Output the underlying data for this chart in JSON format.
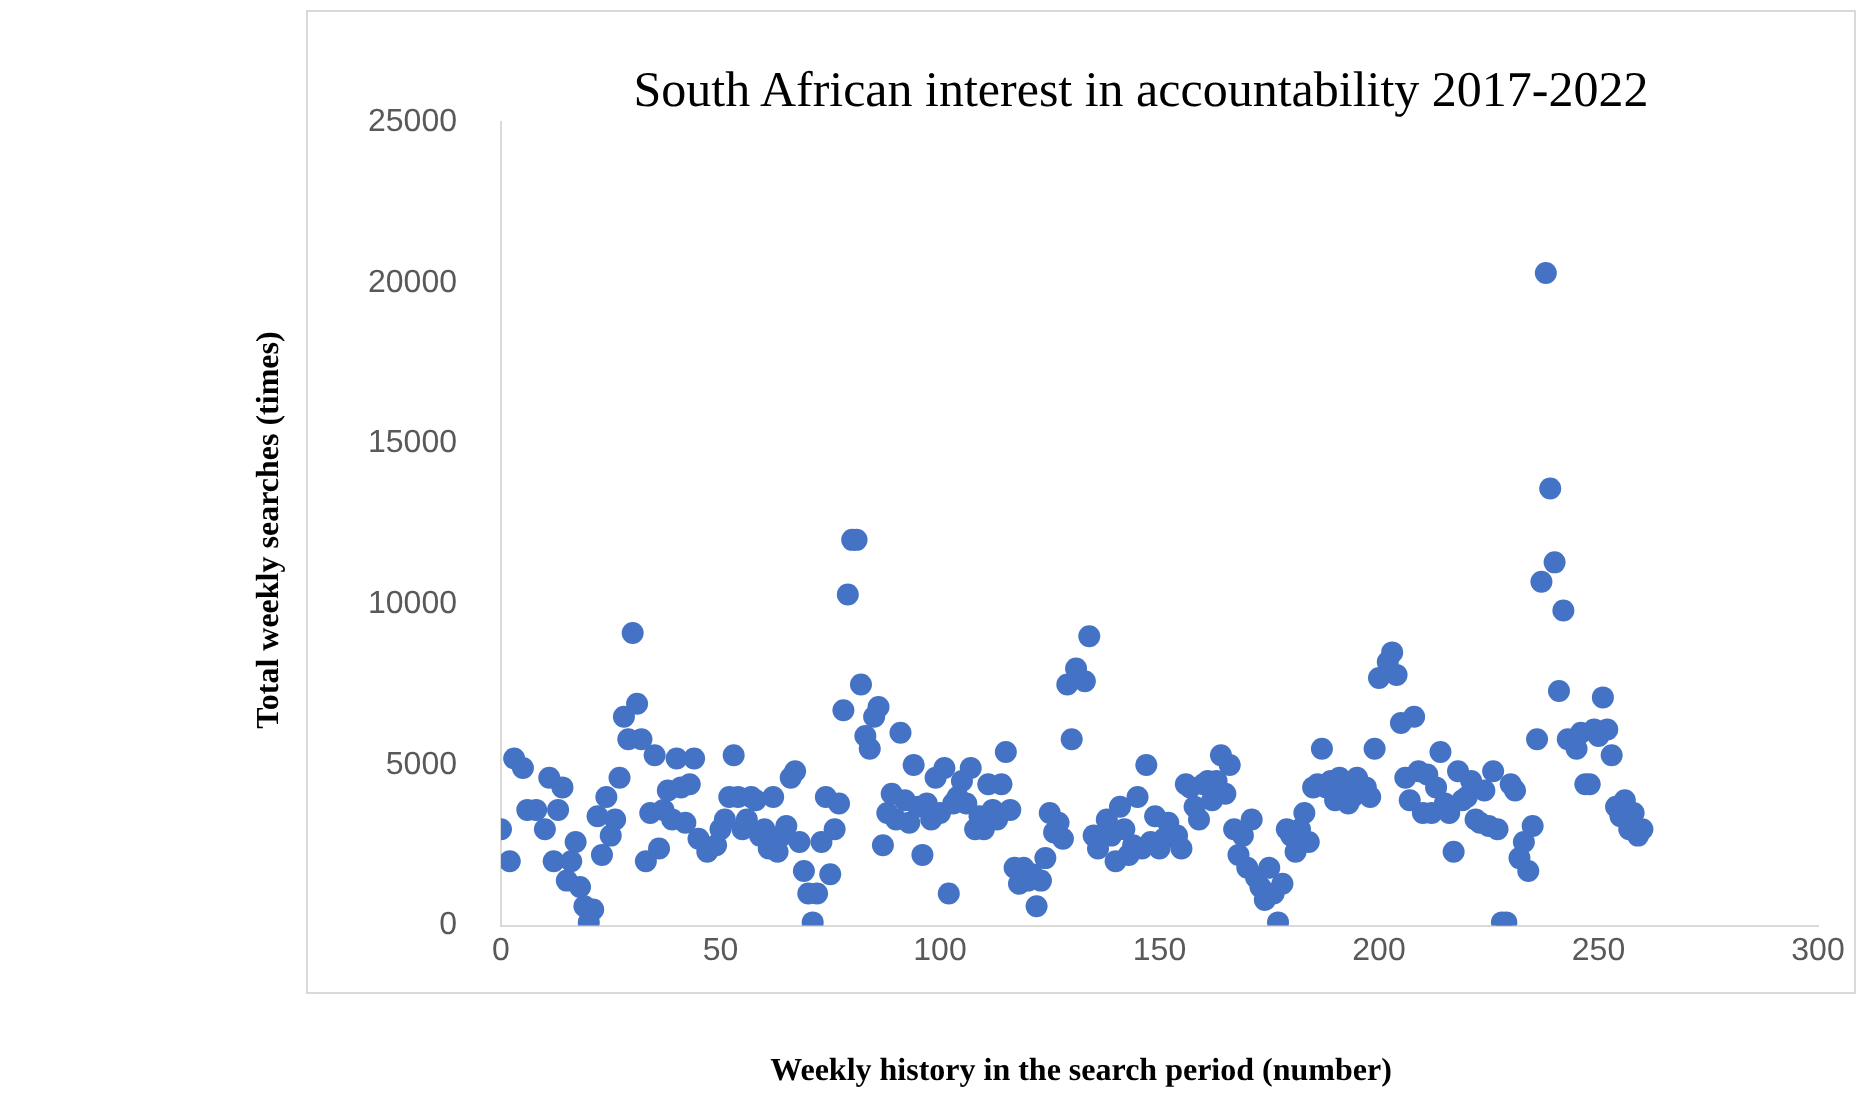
{
  "chart_data": {
    "type": "scatter",
    "title": "South African interest in accountability 2017-2022",
    "xlabel": "Weekly history in the search period (number)",
    "ylabel": "Total weekly searches (times)",
    "x": [
      0,
      2,
      3,
      5,
      6,
      8,
      10,
      11,
      12,
      13,
      14,
      15,
      16,
      17,
      18,
      19,
      20,
      21,
      22,
      23,
      24,
      25,
      26,
      27,
      28,
      29,
      30,
      31,
      32,
      33,
      34,
      35,
      36,
      37,
      38,
      39,
      40,
      41,
      42,
      43,
      44,
      45,
      46,
      47,
      48,
      49,
      50,
      51,
      52,
      53,
      54,
      55,
      56,
      57,
      58,
      59,
      60,
      61,
      62,
      63,
      64,
      65,
      66,
      67,
      68,
      69,
      70,
      71,
      72,
      73,
      74,
      75,
      76,
      77,
      78,
      79,
      80,
      81,
      82,
      83,
      84,
      85,
      86,
      87,
      88,
      89,
      90,
      91,
      92,
      93,
      94,
      95,
      96,
      97,
      98,
      99,
      100,
      101,
      102,
      103,
      104,
      105,
      106,
      107,
      108,
      109,
      110,
      111,
      112,
      113,
      114,
      115,
      116,
      117,
      118,
      119,
      120,
      121,
      122,
      123,
      124,
      125,
      126,
      127,
      128,
      129,
      130,
      131,
      132,
      133,
      134,
      135,
      136,
      137,
      138,
      139,
      140,
      141,
      142,
      143,
      144,
      145,
      146,
      147,
      148,
      149,
      150,
      151,
      152,
      153,
      154,
      155,
      156,
      157,
      158,
      159,
      160,
      161,
      162,
      163,
      164,
      165,
      166,
      167,
      168,
      169,
      170,
      171,
      172,
      173,
      174,
      175,
      176,
      177,
      178,
      179,
      180,
      181,
      182,
      183,
      184,
      185,
      186,
      187,
      188,
      189,
      190,
      191,
      192,
      193,
      194,
      195,
      196,
      197,
      198,
      199,
      200,
      201,
      202,
      203,
      204,
      205,
      206,
      207,
      208,
      209,
      210,
      211,
      212,
      213,
      214,
      215,
      216,
      217,
      218,
      219,
      220,
      221,
      222,
      223,
      224,
      225,
      226,
      227,
      228,
      229,
      230,
      231,
      232,
      233,
      234,
      235,
      236,
      237,
      238,
      239,
      240,
      241,
      242,
      243,
      244,
      245,
      246,
      247,
      248,
      249,
      250,
      251,
      252,
      253,
      254,
      255,
      256,
      257,
      258,
      259,
      260
    ],
    "series": [
      {
        "color": "#4472c4",
        "values": [
          3000,
          2000,
          5200,
          4900,
          3600,
          3600,
          3000,
          4600,
          2000,
          3600,
          4300,
          1400,
          2000,
          2600,
          1200,
          600,
          100,
          500,
          3400,
          2200,
          4000,
          2800,
          3300,
          4600,
          6500,
          5800,
          9100,
          6900,
          5800,
          2000,
          3500,
          5300,
          2400,
          3600,
          4200,
          3300,
          5200,
          4300,
          3200,
          4400,
          5200,
          2700,
          null,
          2300,
          null,
          2500,
          3000,
          3300,
          4000,
          5300,
          4000,
          3000,
          3300,
          4000,
          3900,
          2800,
          3000,
          2400,
          4000,
          2300,
          2800,
          3100,
          4600,
          4800,
          2600,
          1700,
          1000,
          100,
          1000,
          2600,
          4000,
          1600,
          3000,
          3800,
          6700,
          10300,
          12000,
          12000,
          7500,
          5900,
          5500,
          6500,
          6800,
          2500,
          3500,
          4100,
          3300,
          6000,
          3900,
          3200,
          5000,
          3700,
          2200,
          3800,
          3300,
          4600,
          3500,
          4900,
          1000,
          3800,
          4000,
          4500,
          3800,
          4900,
          3000,
          3400,
          3000,
          4400,
          3600,
          3300,
          4400,
          5400,
          3600,
          1800,
          1300,
          1800,
          1400,
          1600,
          600,
          1400,
          2100,
          3500,
          2900,
          3200,
          2700,
          7500,
          5800,
          8000,
          null,
          7600,
          9000,
          2800,
          2400,
          null,
          3300,
          2800,
          2000,
          3700,
          3000,
          2200,
          2500,
          4000,
          2400,
          5000,
          2600,
          3400,
          2400,
          2700,
          3200,
          null,
          2800,
          2400,
          4400,
          4300,
          3700,
          3300,
          4400,
          4500,
          3900,
          4500,
          5300,
          4100,
          5000,
          3000,
          2200,
          2800,
          1800,
          3300,
          1500,
          1200,
          800,
          1800,
          1000,
          100,
          1300,
          3000,
          2800,
          2300,
          3000,
          3500,
          2600,
          4300,
          4400,
          5500,
          4300,
          4500,
          3900,
          4600,
          4400,
          3800,
          4000,
          4600,
          null,
          4300,
          4000,
          5500,
          7700,
          null,
          8200,
          8500,
          7800,
          6300,
          4600,
          3900,
          6500,
          4800,
          3500,
          4700,
          3500,
          4300,
          5400,
          3800,
          3500,
          2300,
          4800,
          3900,
          4000,
          4500,
          3300,
          3200,
          4200,
          3100,
          4800,
          3000,
          100,
          100,
          4400,
          4200,
          2100,
          2600,
          1700,
          3100,
          5800,
          10700,
          20300,
          13600,
          11300,
          7300,
          9800,
          5800,
          null,
          5500,
          6000,
          4400,
          4400,
          6100,
          5900,
          7100,
          6100,
          5300,
          3700,
          3400,
          3900,
          3000,
          3500,
          2800,
          3000
        ]
      }
    ],
    "xlim": [
      0,
      300
    ],
    "xticks": [
      0,
      50,
      100,
      150,
      200,
      250,
      300
    ],
    "ylim": [
      0,
      25000
    ],
    "yticks": [
      0,
      5000,
      10000,
      15000,
      20000,
      25000
    ],
    "grid": false,
    "legend": false,
    "marker": "circle"
  }
}
